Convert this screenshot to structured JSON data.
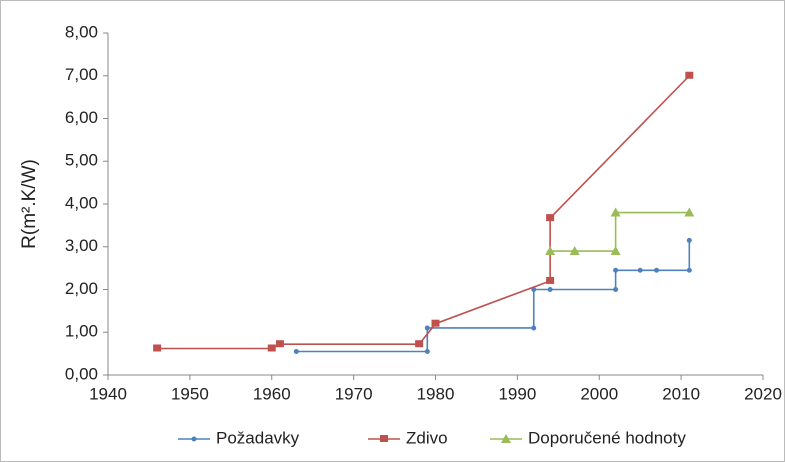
{
  "chart_data": {
    "type": "line",
    "y_label": "R(m².K/W)",
    "xlim": [
      1940,
      2020
    ],
    "xticks": [
      1940,
      1950,
      1960,
      1970,
      1980,
      1990,
      2000,
      2010,
      2020
    ],
    "ylim": [
      0,
      8
    ],
    "yticks": [
      {
        "value": 0,
        "label": "0,00"
      },
      {
        "value": 1,
        "label": "1,00"
      },
      {
        "value": 2,
        "label": "2,00"
      },
      {
        "value": 3,
        "label": "3,00"
      },
      {
        "value": 4,
        "label": "4,00"
      },
      {
        "value": 5,
        "label": "5,00"
      },
      {
        "value": 6,
        "label": "6,00"
      },
      {
        "value": 7,
        "label": "7,00"
      },
      {
        "value": 8,
        "label": "8,00"
      }
    ],
    "grid": false,
    "legend": "bottom",
    "series": [
      {
        "name": "Požadavky",
        "color": "#4f81bd",
        "marker": "circle",
        "x": [
          1963,
          1979,
          1979,
          1992,
          1992,
          1994,
          2002,
          2002,
          2005,
          2007,
          2011,
          2011
        ],
        "values": [
          0.55,
          0.55,
          1.1,
          1.1,
          2.0,
          2.0,
          2.0,
          2.45,
          2.45,
          2.45,
          2.45,
          3.15
        ]
      },
      {
        "name": "Zdivo",
        "color": "#c0504d",
        "marker": "square",
        "x": [
          1946,
          1960,
          1961,
          1978,
          1980,
          1994,
          1994,
          2011
        ],
        "values": [
          0.62,
          0.62,
          0.72,
          0.72,
          1.2,
          2.2,
          3.67,
          7.0
        ]
      },
      {
        "name": "Doporučené hodnoty",
        "color": "#9bbb59",
        "marker": "triangle",
        "x": [
          1994,
          1997,
          2002,
          2002,
          2011
        ],
        "values": [
          2.9,
          2.9,
          2.9,
          3.8,
          3.8
        ]
      }
    ]
  }
}
